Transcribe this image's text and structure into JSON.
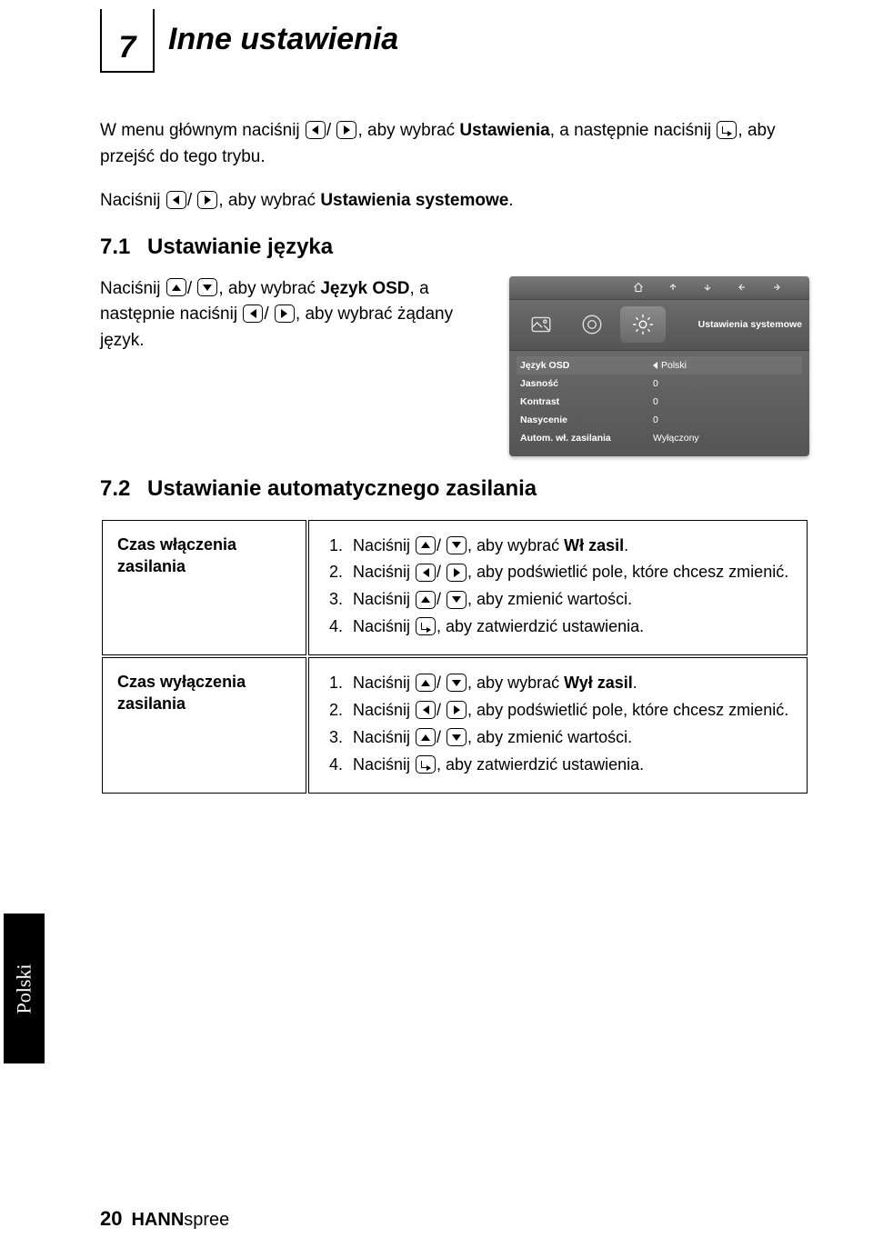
{
  "chapter": {
    "number": "7",
    "title": "Inne ustawienia"
  },
  "intro": {
    "p1a": "W menu głównym naciśnij ",
    "p1b": "/ ",
    "p1c": ", aby wybrać ",
    "p1_bold1": "Ustawienia",
    "p1d": ", a następnie naciśnij ",
    "p1e": ", aby przejść do tego trybu.",
    "p2a": "Naciśnij ",
    "p2b": "/ ",
    "p2c": ", aby wybrać ",
    "p2_bold1": "Ustawienia systemowe",
    "p2d": "."
  },
  "section71": {
    "num": "7.1",
    "title": "Ustawianie języka",
    "body_a": "Naciśnij ",
    "body_b": "/ ",
    "body_c": ", aby wybrać ",
    "body_bold": "Język OSD",
    "body_d": ", a następnie naciśnij ",
    "body_e": "/ ",
    "body_f": ", aby wybrać żądany język."
  },
  "osd": {
    "tab_label": "Ustawienia systemowe",
    "rows": [
      {
        "key": "Język OSD",
        "val": "Polski",
        "arrow": true,
        "hl": true
      },
      {
        "key": "Jasność",
        "val": "0"
      },
      {
        "key": "Kontrast",
        "val": "0"
      },
      {
        "key": "Nasycenie",
        "val": "0"
      },
      {
        "key": "Autom. wł. zasilania",
        "val": "Wyłączony"
      }
    ],
    "colors": {
      "bg_top": "#777777",
      "bg_bottom": "#555555",
      "text": "#ffffff"
    }
  },
  "section72": {
    "num": "7.2",
    "title": "Ustawianie automatycznego zasilania"
  },
  "table": {
    "rows": [
      {
        "left": "Czas włączenia zasilania",
        "steps": [
          {
            "pre": "Naciśnij ",
            "icons": "updown",
            "post": ", aby wybrać ",
            "bold": "Wł zasil",
            "tail": "."
          },
          {
            "pre": "Naciśnij ",
            "icons": "leftright",
            "post": ", aby podświetlić pole, które chcesz zmienić."
          },
          {
            "pre": "Naciśnij ",
            "icons": "updown",
            "post": ", aby zmienić wartości."
          },
          {
            "pre": "Naciśnij ",
            "icons": "enter",
            "post": ", aby zatwierdzić ustawienia."
          }
        ]
      },
      {
        "left": "Czas wyłączenia zasilania",
        "steps": [
          {
            "pre": "Naciśnij ",
            "icons": "updown",
            "post": ", aby wybrać ",
            "bold": "Wył zasil",
            "tail": "."
          },
          {
            "pre": "Naciśnij ",
            "icons": "leftright",
            "post": ", aby podświetlić pole, które chcesz zmienić."
          },
          {
            "pre": "Naciśnij ",
            "icons": "updown",
            "post": ", aby zmienić wartości."
          },
          {
            "pre": "Naciśnij ",
            "icons": "enter",
            "post": ", aby zatwierdzić ustawienia."
          }
        ]
      }
    ]
  },
  "side_tab": "Polski",
  "footer": {
    "page": "20",
    "brand_bold": "HANN",
    "brand_thin": "spree"
  }
}
